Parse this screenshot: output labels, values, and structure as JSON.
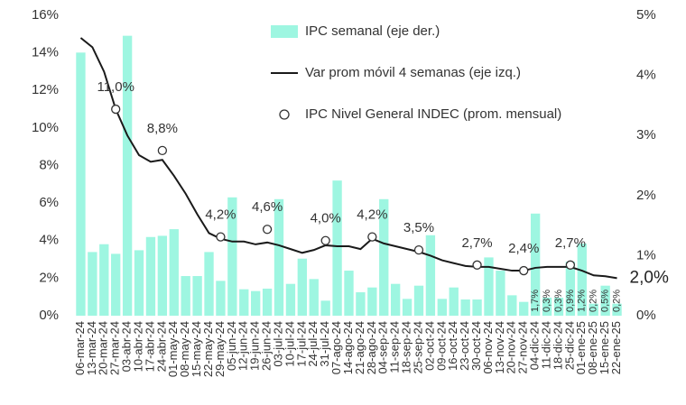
{
  "chart_data": {
    "type": "combo",
    "categories": [
      "06-mar-24",
      "13-mar-24",
      "20-mar-24",
      "27-mar-24",
      "03-abr-24",
      "10-abr-24",
      "17-abr-24",
      "24-abr-24",
      "01-may-24",
      "08-may-24",
      "15-may-24",
      "22-may-24",
      "29-may-24",
      "05-jun-24",
      "12-jun-24",
      "19-jun-24",
      "26-jun-24",
      "03-jul-24",
      "10-jul-24",
      "17-jul-24",
      "24-jul-24",
      "31-jul-24",
      "07-ago-24",
      "14-ago-24",
      "21-ago-24",
      "28-ago-24",
      "04-sep-24",
      "11-sep-24",
      "18-sep-24",
      "25-sep-24",
      "02-oct-24",
      "09-oct-24",
      "16-oct-24",
      "23-oct-24",
      "30-oct-24",
      "06-nov-24",
      "13-nov-24",
      "20-nov-24",
      "27-nov-24",
      "04-dic-24",
      "11-dic-24",
      "18-dic-24",
      "25-dic-24",
      "01-ene-25",
      "08-ene-25",
      "15-ene-25",
      "22-ene-25"
    ],
    "series": [
      {
        "name": "IPC semanal (eje der.)",
        "type": "bar",
        "axis": "y2",
        "color": "#9ef6e1",
        "values": [
          4.38,
          1.06,
          1.19,
          1.03,
          4.66,
          1.09,
          1.31,
          1.33,
          1.44,
          0.66,
          0.66,
          1.06,
          0.58,
          1.97,
          0.44,
          0.41,
          0.45,
          1.94,
          0.53,
          0.95,
          0.61,
          0.25,
          2.25,
          0.75,
          0.39,
          0.47,
          1.94,
          0.53,
          0.28,
          0.5,
          1.34,
          0.28,
          0.47,
          0.27,
          0.27,
          0.97,
          0.75,
          0.34,
          0.23,
          1.7,
          0.3,
          0.3,
          0.9,
          1.2,
          0.2,
          0.5,
          0.2
        ],
        "value_labels": [
          null,
          null,
          null,
          null,
          null,
          null,
          null,
          null,
          null,
          null,
          null,
          null,
          null,
          null,
          null,
          null,
          null,
          null,
          null,
          null,
          null,
          null,
          null,
          null,
          null,
          null,
          null,
          null,
          null,
          null,
          null,
          null,
          null,
          null,
          null,
          null,
          null,
          null,
          null,
          "1,7%",
          "0,3%",
          "0,3%",
          "0,9%",
          "1,2%",
          "0,2%",
          "0,5%",
          "0,2%"
        ]
      },
      {
        "name": "Var prom móvil 4 semanas (eje izq.)",
        "type": "line",
        "color": "#1a1a1a",
        "values": [
          14.8,
          14.3,
          13.0,
          11.0,
          9.6,
          8.55,
          8.2,
          8.3,
          7.45,
          6.5,
          5.4,
          4.4,
          4.1,
          3.95,
          3.95,
          3.8,
          3.9,
          3.75,
          3.55,
          3.35,
          3.5,
          3.75,
          3.7,
          3.7,
          3.55,
          4.1,
          3.85,
          3.7,
          3.55,
          3.4,
          3.2,
          2.95,
          2.8,
          2.65,
          2.6,
          2.6,
          2.5,
          2.4,
          2.4,
          2.55,
          2.6,
          2.6,
          2.6,
          2.4,
          2.15,
          2.1,
          2.0
        ],
        "value_labels": [
          null,
          null,
          null,
          null,
          null,
          null,
          null,
          null,
          null,
          null,
          null,
          null,
          null,
          null,
          null,
          null,
          null,
          null,
          null,
          null,
          null,
          null,
          null,
          null,
          null,
          null,
          null,
          null,
          null,
          null,
          null,
          null,
          null,
          null,
          null,
          null,
          null,
          null,
          null,
          null,
          null,
          null,
          null,
          null,
          null,
          null,
          "2,0%"
        ]
      },
      {
        "name": "IPC Nivel General INDEC (prom. mensual)",
        "type": "scatter",
        "color": "#333333",
        "values": [
          null,
          null,
          null,
          11.0,
          null,
          null,
          null,
          8.8,
          null,
          null,
          null,
          null,
          4.2,
          null,
          null,
          null,
          4.6,
          null,
          null,
          null,
          null,
          4.0,
          null,
          null,
          null,
          4.2,
          null,
          null,
          null,
          3.5,
          null,
          null,
          null,
          null,
          2.7,
          null,
          null,
          null,
          2.4,
          null,
          null,
          null,
          2.7,
          null,
          null,
          null,
          null
        ],
        "value_labels": [
          null,
          null,
          null,
          "11,0%",
          null,
          null,
          null,
          "8,8%",
          null,
          null,
          null,
          null,
          "4,2%",
          null,
          null,
          null,
          "4,6%",
          null,
          null,
          null,
          null,
          "4,0%",
          null,
          null,
          null,
          "4,2%",
          null,
          null,
          null,
          "3,5%",
          null,
          null,
          null,
          null,
          "2,7%",
          null,
          null,
          null,
          "2,4%",
          null,
          null,
          null,
          "2,7%",
          null,
          null,
          null,
          null
        ]
      }
    ],
    "ylim": [
      0,
      16
    ],
    "yticks": [
      {
        "value": 0,
        "label": "0%"
      },
      {
        "value": 2,
        "label": "2%"
      },
      {
        "value": 4,
        "label": "4%"
      },
      {
        "value": 6,
        "label": "6%"
      },
      {
        "value": 8,
        "label": "8%"
      },
      {
        "value": 10,
        "label": "10%"
      },
      {
        "value": 12,
        "label": "12%"
      },
      {
        "value": 14,
        "label": "14%"
      },
      {
        "value": 16,
        "label": "16%"
      }
    ],
    "y2lim": [
      0,
      5
    ],
    "y2ticks": [
      {
        "value": 0,
        "label": "0%"
      },
      {
        "value": 1,
        "label": "1%"
      },
      {
        "value": 2,
        "label": "2%"
      },
      {
        "value": 3,
        "label": "3%"
      },
      {
        "value": 4,
        "label": "4%"
      },
      {
        "value": 5,
        "label": "5%"
      }
    ],
    "legend": "top-right"
  }
}
